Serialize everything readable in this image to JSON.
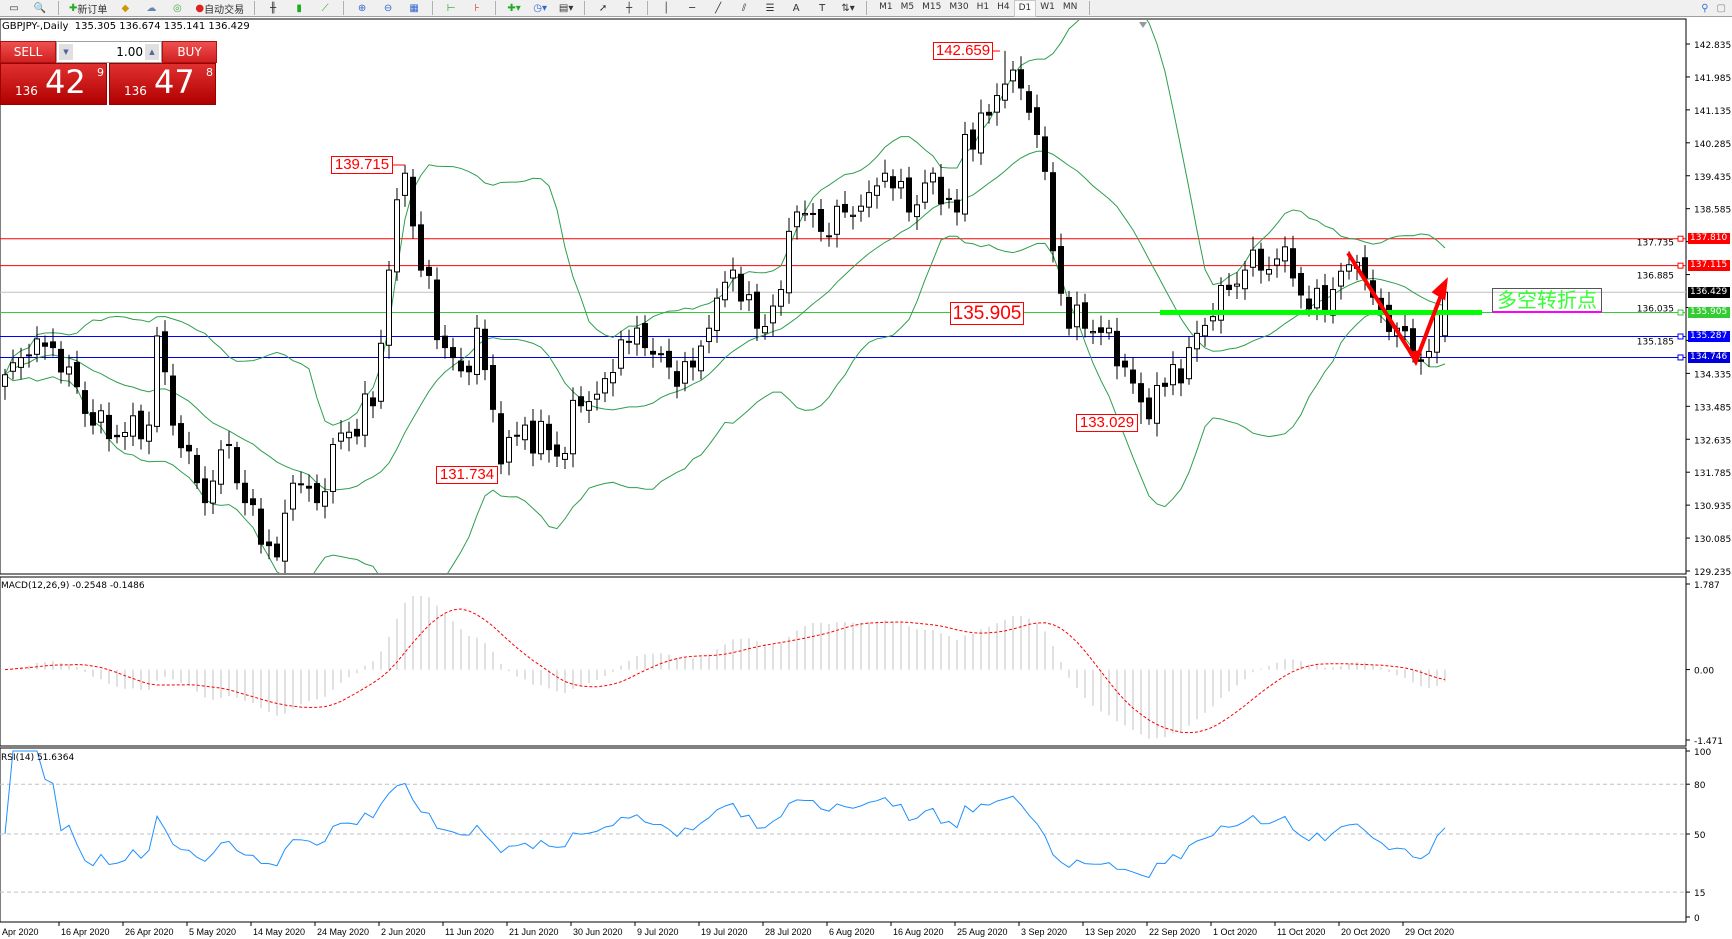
{
  "toolbar": {
    "new_order_label": "新订单",
    "auto_trading_label": "自动交易",
    "timeframes": [
      "M1",
      "M5",
      "M15",
      "M30",
      "H1",
      "H4",
      "D1",
      "W1",
      "MN"
    ],
    "active_timeframe": "D1",
    "tool_glyphs": [
      "A",
      "T"
    ]
  },
  "header": {
    "title": "GBPJPY-,Daily  135.305 136.674 135.141 136.429"
  },
  "trade_panel": {
    "sell_label": "SELL",
    "buy_label": "BUY",
    "quantity": "1.00",
    "sell_price": {
      "prefix": "136",
      "big": "42",
      "sup": "9"
    },
    "buy_price": {
      "prefix": "136",
      "big": "47",
      "sup": "8"
    },
    "color": "#d02020"
  },
  "price_labels": {
    "high_1": "142.659",
    "high_2": "139.715",
    "low_1": "131.734",
    "low_2": "133.029",
    "pivot": "135.905"
  },
  "annotation": {
    "text": "多空转折点",
    "color": "#33ff33"
  },
  "hlines": [
    {
      "price": 137.81,
      "label": "137.810",
      "color": "#ff0000"
    },
    {
      "price": 137.115,
      "label": "137.115",
      "color": "#ff0000"
    },
    {
      "price": 136.429,
      "label": "136.429",
      "color": "#000000",
      "line_color": "#c0c0c0"
    },
    {
      "price": 135.905,
      "label": "135.905",
      "color": "#33cc33"
    },
    {
      "price": 135.287,
      "label": "135.287",
      "color": "#0000ff"
    },
    {
      "price": 134.746,
      "label": "134.746",
      "color": "#0000dd"
    }
  ],
  "macd": {
    "title": "MACD(12,26,9) -0.2548 -0.1486",
    "ticks": [
      "1.787",
      "0.00",
      "-1.471"
    ],
    "range": [
      -1.471,
      1.787
    ],
    "histogram_color": "#c0c0c0",
    "signal_color": "#ff0000"
  },
  "rsi": {
    "title": "RSI(14) 51.6364",
    "ticks": [
      "100",
      "80",
      "50",
      "15",
      "0"
    ],
    "levels": [
      80,
      50,
      15
    ],
    "color": "#1e90ff"
  },
  "chart_data": {
    "type": "candlestick",
    "symbol": "GBPJPY-",
    "timeframe": "Daily",
    "last_bar": {
      "open": 135.305,
      "high": 136.674,
      "low": 135.141,
      "close": 136.429
    },
    "price_axis": {
      "min": 129.235,
      "max": 142.835,
      "ticks": [
        "142.835",
        "141.985",
        "141.135",
        "140.285",
        "139.435",
        "138.585",
        "137.735",
        "136.885",
        "136.035",
        "135.185",
        "134.335",
        "133.485",
        "132.635",
        "131.785",
        "130.935",
        "130.085",
        "129.235"
      ]
    },
    "bar_count": 181,
    "close_anchors": [
      [
        0,
        134.3
      ],
      [
        3,
        134.8
      ],
      [
        6,
        135
      ],
      [
        8,
        134.5
      ],
      [
        11,
        133
      ],
      [
        14,
        132.7
      ],
      [
        18,
        133
      ],
      [
        19,
        135.3
      ],
      [
        21,
        133
      ],
      [
        25,
        131
      ],
      [
        28,
        132.5
      ],
      [
        30,
        131
      ],
      [
        34,
        129.6
      ],
      [
        36,
        131.5
      ],
      [
        39,
        131
      ],
      [
        41,
        132.5
      ],
      [
        46,
        133.5
      ],
      [
        48,
        137
      ],
      [
        50,
        139.5
      ],
      [
        52,
        137
      ],
      [
        55,
        135
      ],
      [
        57,
        134.4
      ],
      [
        59,
        135.5
      ],
      [
        62,
        132
      ],
      [
        65,
        133
      ],
      [
        69,
        132.2
      ],
      [
        72,
        133.5
      ],
      [
        75,
        134.2
      ],
      [
        77,
        135.2
      ],
      [
        80,
        135
      ],
      [
        83,
        134.5
      ],
      [
        86,
        134.5
      ],
      [
        88,
        135.5
      ],
      [
        91,
        137
      ],
      [
        94,
        135.5
      ],
      [
        97,
        136.5
      ],
      [
        98,
        138
      ],
      [
        99,
        138.5
      ],
      [
        102,
        138
      ],
      [
        105,
        138.5
      ],
      [
        108,
        139
      ],
      [
        110,
        139.5
      ],
      [
        113,
        138.5
      ],
      [
        116,
        139.5
      ],
      [
        119,
        138.5
      ],
      [
        120,
        140.5
      ],
      [
        123,
        141
      ],
      [
        125,
        141.8
      ],
      [
        127,
        141.7
      ],
      [
        129,
        140.5
      ],
      [
        131,
        137.5
      ],
      [
        133,
        135.5
      ],
      [
        135,
        135.5
      ],
      [
        138,
        135.5
      ],
      [
        140,
        134.5
      ],
      [
        142,
        133.6
      ],
      [
        145,
        134
      ],
      [
        148,
        135
      ],
      [
        151,
        135.8
      ],
      [
        153,
        136.5
      ],
      [
        155,
        137
      ],
      [
        157,
        137
      ],
      [
        160,
        137.6
      ],
      [
        163,
        136
      ],
      [
        166,
        136.5
      ],
      [
        169,
        137.2
      ],
      [
        171,
        136.3
      ],
      [
        174,
        135.5
      ],
      [
        176,
        134.8
      ],
      [
        178,
        134.9
      ],
      [
        180,
        136.429
      ]
    ],
    "extremes": [
      {
        "bar": 125,
        "high": 142.659
      },
      {
        "bar": 50,
        "high": 139.715
      },
      {
        "bar": 62,
        "low": 131.734
      },
      {
        "bar": 142,
        "low": 133.029
      },
      {
        "bar": 34,
        "low": 129.5
      }
    ],
    "bollinger": {
      "period": 20,
      "deviation": 2,
      "color": "#2e9e4e"
    },
    "date_labels": [
      "Apr 2020",
      "16 Apr 2020",
      "26 Apr 2020",
      "5 May 2020",
      "14 May 2020",
      "24 May 2020",
      "2 Jun 2020",
      "11 Jun 2020",
      "21 Jun 2020",
      "30 Jun 2020",
      "9 Jul 2020",
      "19 Jul 2020",
      "28 Jul 2020",
      "6 Aug 2020",
      "16 Aug 2020",
      "25 Aug 2020",
      "3 Sep 2020",
      "13 Sep 2020",
      "22 Sep 2020",
      "1 Oct 2020",
      "11 Oct 2020",
      "20 Oct 2020",
      "29 Oct 2020"
    ],
    "bull_color": "#ffffff",
    "bear_color": "#000000"
  }
}
